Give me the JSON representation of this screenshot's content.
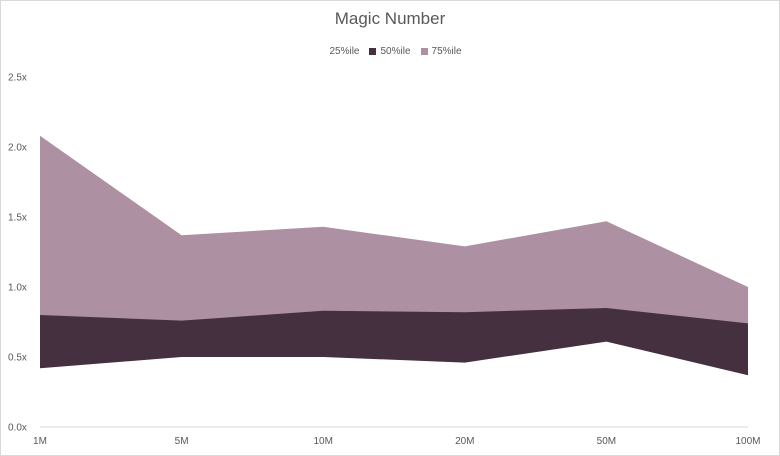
{
  "chart_data": {
    "type": "area",
    "title": "Magic Number",
    "categories": [
      "1M",
      "5M",
      "10M",
      "20M",
      "50M",
      "100M"
    ],
    "y_ticks": [
      "0.0x",
      "0.5x",
      "1.0x",
      "1.5x",
      "2.0x",
      "2.5x"
    ],
    "ylim": [
      0,
      2.5
    ],
    "stacked": false,
    "legend_position": "top-center",
    "grid": false,
    "series": [
      {
        "name": "25%ile",
        "color": "#ffffff",
        "values": [
          0.42,
          0.5,
          0.5,
          0.46,
          0.61,
          0.37
        ]
      },
      {
        "name": "50%ile",
        "color": "#45303f",
        "values": [
          0.8,
          0.76,
          0.83,
          0.82,
          0.85,
          0.74
        ]
      },
      {
        "name": "75%ile",
        "color": "#ad90a2",
        "values": [
          2.08,
          1.37,
          1.43,
          1.29,
          1.47,
          1.0
        ]
      }
    ]
  }
}
